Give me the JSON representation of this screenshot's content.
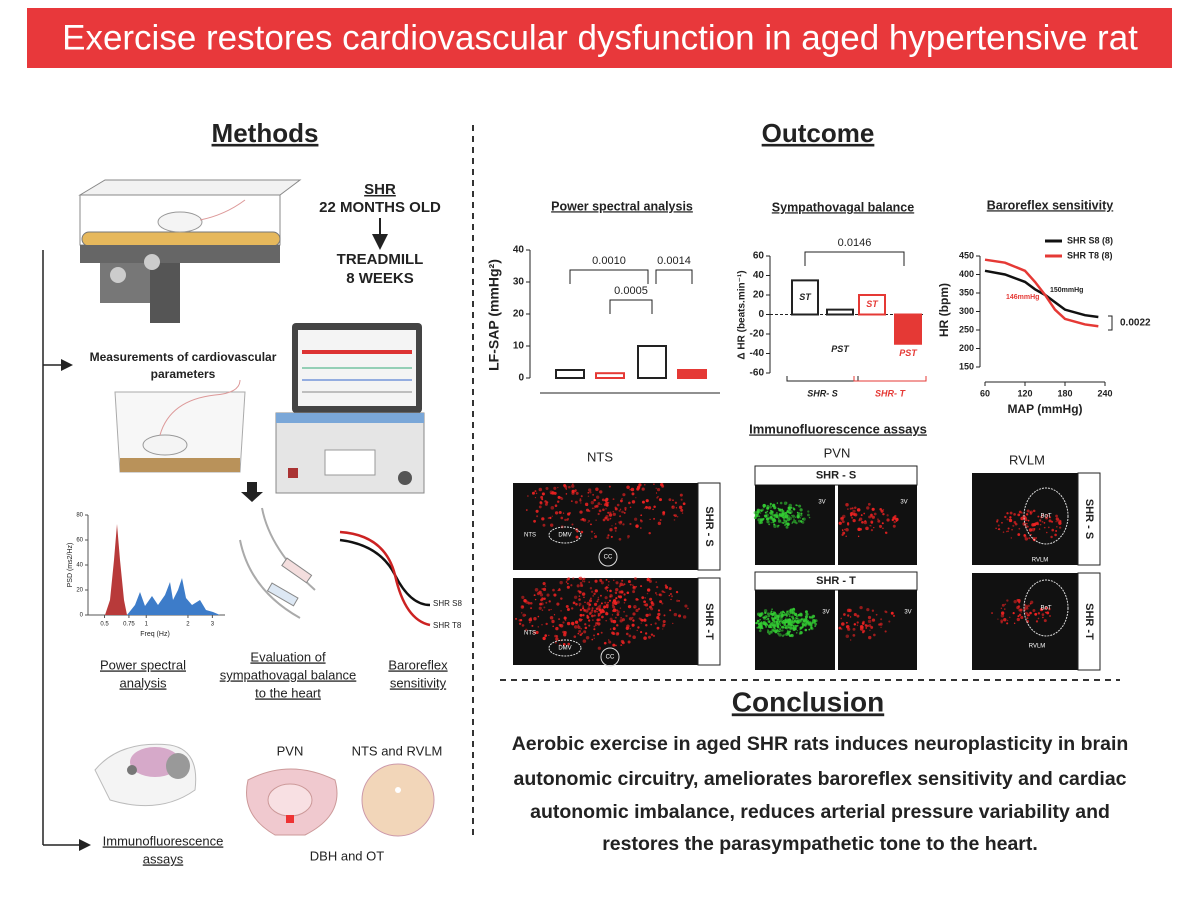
{
  "header": {
    "title": "Exercise restores cardiovascular dysfunction in aged hypertensive rat"
  },
  "methods": {
    "title": "Methods",
    "shr": "SHR",
    "age": "22 MONTHS OLD",
    "treadmill": "TREADMILL",
    "duration": "8 WEEKS",
    "measurements": [
      "Measurements of cardiovascular",
      "parameters"
    ],
    "psd_chart": {
      "y_label": "PSD (ms2/Hz)",
      "x_label": "Freq (Hz)",
      "ylim": [
        0,
        80
      ],
      "yticks": [
        0,
        20,
        40,
        60,
        80
      ],
      "xlim": [
        0.38,
        3.7
      ],
      "xticks": [
        0.5,
        0.75,
        1,
        2,
        3
      ],
      "xlog": true
    },
    "baroreflex_legend": [
      "SHR S8",
      "SHR T8"
    ],
    "power_spectral": [
      "Power spectral",
      "analysis"
    ],
    "sympathovagal": [
      "Evaluation of",
      "sympathovagal balance",
      "to the heart"
    ],
    "baroreflex": [
      "Baroreflex",
      "sensitivity"
    ],
    "immuno": [
      "Immunofluorescence",
      "assays"
    ],
    "pvn": "PVN",
    "nts_rvlm": "NTS and RVLM",
    "markers": "DBH and OT"
  },
  "outcome": {
    "title": "Outcome",
    "charts": [
      {
        "type": "bar",
        "title": "Power spectral analysis",
        "y_label": "LF-SAP (mmHg²)",
        "categories": [
          null,
          null,
          null,
          null
        ],
        "values": [
          2.5,
          1.5,
          10,
          2.5
        ],
        "colors": [
          "#222222",
          "#e53935",
          "#222222",
          "#e53935"
        ],
        "filled": [
          false,
          false,
          false,
          true
        ],
        "ylim": [
          0,
          40
        ],
        "yticks": [
          0,
          10,
          20,
          30,
          40
        ],
        "annotations": [
          "0.0010",
          "0.0014",
          "0.0005"
        ]
      },
      {
        "type": "bar",
        "title": "Sympathovagal balance",
        "y_label": "Δ HR (beats.min⁻¹)",
        "categories": [
          "ST",
          "PST",
          "ST",
          "PST"
        ],
        "values": [
          35,
          5,
          20,
          -30
        ],
        "colors": [
          "#222222",
          "#222222",
          "#e53935",
          "#e53935"
        ],
        "filled": [
          false,
          false,
          false,
          true
        ],
        "groups": [
          "SHR- S",
          "SHR- T"
        ],
        "ylim": [
          -60,
          60
        ],
        "yticks": [
          -60,
          -40,
          -20,
          0,
          20,
          40,
          60
        ],
        "annotations": [
          "0.0146"
        ]
      },
      {
        "type": "line",
        "title": "Baroreflex sensitivity",
        "x_label": "MAP (mmHg)",
        "y_label": "HR (bpm)",
        "x": [
          60,
          90,
          120,
          135,
          150,
          165,
          180,
          210,
          230
        ],
        "series": [
          {
            "name": "SHR S8 (8)",
            "color": "#111111",
            "values": [
              410,
              400,
              380,
              360,
              345,
              325,
              305,
              290,
              285
            ]
          },
          {
            "name": "SHR T8 (8)",
            "color": "#e53935",
            "values": [
              440,
              432,
              410,
              380,
              345,
              305,
              280,
              265,
              260
            ]
          }
        ],
        "xlim": [
          60,
          240
        ],
        "xticks": [
          60,
          120,
          180,
          240
        ],
        "ylim": [
          150,
          450
        ],
        "yticks": [
          150,
          200,
          250,
          300,
          350,
          400,
          450
        ],
        "annotations": [
          "150mmHg",
          "146mmHg",
          "0.0022"
        ]
      }
    ],
    "immuno": {
      "title": "Immunofluorescence assays",
      "nts": "NTS",
      "pvn": "PVN",
      "rvlm": "RVLM",
      "shr_s": "SHR - S",
      "shr_t": "SHR -T",
      "shr_t_pvn": "SHR - T",
      "nts_regions": [
        "NTS",
        "DMV",
        "CC"
      ],
      "pvn_region": "3V",
      "rvlm_regions": [
        "BoT",
        "RVLM"
      ]
    }
  },
  "conclusion": {
    "title": "Conclusion",
    "text": [
      "Aerobic exercise in aged SHR rats induces neuroplasticity in brain",
      "autonomic circuitry, ameliorates baroreflex sensitivity and cardiac",
      "autonomic imbalance, reduces arterial pressure variability and",
      "restores the parasympathetic tone to the heart."
    ]
  }
}
